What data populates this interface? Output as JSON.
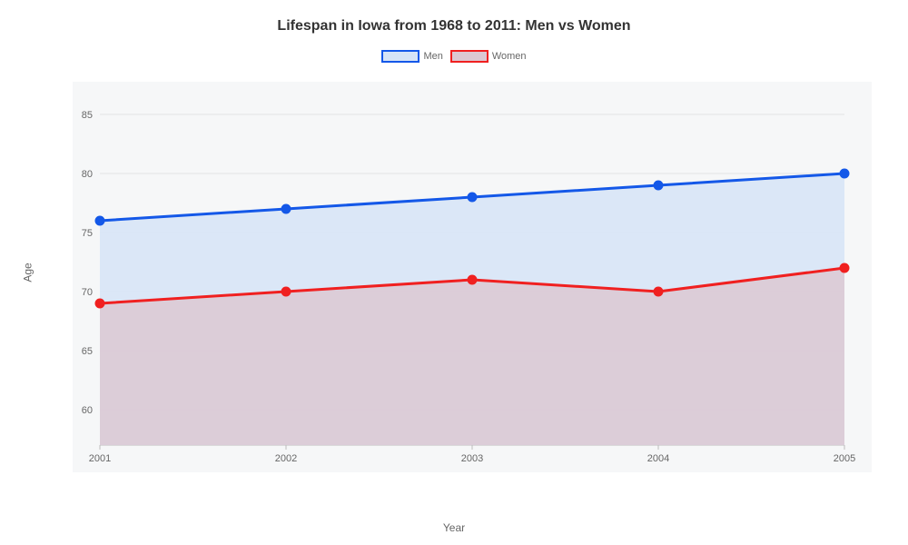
{
  "chart": {
    "type": "area",
    "title": "Lifespan in Iowa from 1968 to 2011: Men vs Women",
    "title_fontsize": 16,
    "title_color": "#333333",
    "background_color": "#ffffff",
    "plot_background": "#f6f7f8",
    "grid_color": "#e3e3e3",
    "axis_color": "#bdbdbd",
    "tick_label_color": "#666666",
    "tick_fontsize": 11,
    "axis_title_fontsize": 12,
    "x_axis": {
      "title": "Year",
      "categories": [
        "2001",
        "2002",
        "2003",
        "2004",
        "2005"
      ]
    },
    "y_axis": {
      "title": "Age",
      "min": 57,
      "max": 87,
      "ticks": [
        60,
        65,
        70,
        75,
        80,
        85
      ]
    },
    "legend": {
      "position": "top",
      "swatch_width": 42,
      "swatch_height": 14,
      "fontsize": 11,
      "text_color": "#666666"
    },
    "series": [
      {
        "name": "Men",
        "values": [
          76,
          77,
          78,
          79,
          80
        ],
        "line_color": "#1458e8",
        "line_width": 3,
        "fill_color": "#d6e4f7",
        "fill_opacity": 0.85,
        "marker": {
          "shape": "circle",
          "size": 5,
          "fill": "#1458e8",
          "stroke": "#1458e8"
        }
      },
      {
        "name": "Women",
        "values": [
          69,
          70,
          71,
          70,
          72
        ],
        "line_color": "#f02020",
        "line_width": 3,
        "fill_color": "#dcc8d2",
        "fill_opacity": 0.85,
        "marker": {
          "shape": "circle",
          "size": 5,
          "fill": "#f02020",
          "stroke": "#f02020"
        }
      }
    ]
  }
}
